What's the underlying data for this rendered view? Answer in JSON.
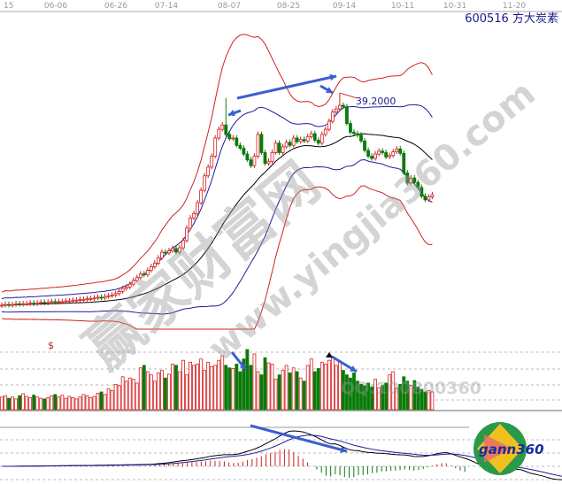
{
  "header": {
    "symbol": "600516",
    "name": "方大炭素"
  },
  "chart_data": {
    "type": "candlestick",
    "title": "600516 方大炭素",
    "x_ticks": [
      "15",
      "06-06",
      "06-26",
      "07-14",
      "08-07",
      "08-25",
      "09-14",
      "10-11",
      "10-31",
      "11-20"
    ],
    "peak_label": "39.2000",
    "peak_value": 39.2,
    "dollar_marker": "$",
    "indicators": [
      "Bollinger bands",
      "Volume",
      "MACD"
    ],
    "colors": {
      "up": "#d42020",
      "down": "#0a7a0a",
      "upper_band": "#d42020",
      "inner_band": "#1c1c9c",
      "mid_band": "#000000",
      "arrow": "#3a5fd0"
    },
    "close": [
      10.0,
      10.1,
      10.0,
      10.1,
      10.2,
      10.1,
      10.2,
      10.2,
      10.3,
      10.2,
      10.3,
      10.4,
      10.3,
      10.4,
      10.5,
      10.4,
      10.5,
      10.5,
      10.6,
      10.6,
      10.7,
      10.7,
      10.8,
      10.8,
      10.9,
      10.9,
      11.0,
      11.1,
      11.0,
      11.2,
      11.3,
      11.4,
      11.6,
      11.9,
      12.3,
      12.5,
      12.9,
      13.4,
      13.8,
      14.3,
      14.2,
      14.8,
      15.3,
      15.8,
      16.5,
      17.3,
      17.2,
      17.5,
      17.8,
      17.3,
      17.9,
      18.9,
      20.6,
      22.0,
      22.6,
      24.1,
      25.8,
      27.8,
      29.0,
      30.5,
      33.0,
      34.2,
      34.8,
      33.5,
      32.9,
      33.0,
      32.0,
      31.6,
      30.8,
      30.0,
      29.2,
      30.5,
      33.5,
      31.0,
      29.5,
      29.8,
      31.0,
      32.3,
      31.0,
      31.8,
      32.4,
      32.0,
      33.0,
      32.5,
      32.8,
      32.6,
      33.2,
      33.6,
      32.7,
      32.3,
      33.5,
      34.2,
      35.3,
      36.6,
      37.0,
      37.5,
      37.3,
      35.0,
      33.8,
      33.6,
      33.4,
      32.6,
      31.3,
      30.5,
      30.2,
      30.8,
      31.2,
      31.0,
      30.4,
      30.6,
      31.1,
      31.5,
      30.9,
      28.2,
      26.8,
      27.5,
      26.9,
      26.2,
      25.0,
      24.5,
      24.9,
      25.2
    ],
    "volume": [
      20,
      22,
      18,
      20,
      17,
      22,
      25,
      21,
      19,
      23,
      20,
      18,
      17,
      19,
      22,
      24,
      20,
      23,
      18,
      21,
      19,
      17,
      20,
      24,
      22,
      19,
      21,
      26,
      28,
      24,
      33,
      30,
      40,
      38,
      52,
      45,
      50,
      48,
      42,
      66,
      70,
      60,
      55,
      45,
      58,
      62,
      50,
      56,
      72,
      70,
      60,
      78,
      55,
      75,
      70,
      72,
      80,
      62,
      75,
      68,
      70,
      78,
      85,
      70,
      66,
      65,
      72,
      60,
      80,
      95,
      70,
      88,
      60,
      55,
      82,
      74,
      72,
      48,
      55,
      62,
      70,
      58,
      66,
      60,
      50,
      45,
      70,
      80,
      60,
      65,
      75,
      72,
      78,
      82,
      70,
      75,
      62,
      55,
      50,
      58,
      45,
      40,
      38,
      42,
      36,
      48,
      35,
      38,
      42,
      55,
      60,
      34,
      40,
      52,
      45,
      38,
      46,
      36,
      32,
      28,
      30,
      28
    ]
  },
  "watermarks": {
    "site_cn": "赢家财富网",
    "site_url": "www.yingjia360.com",
    "qq": "QQ:100800360",
    "logo": "gann360"
  }
}
